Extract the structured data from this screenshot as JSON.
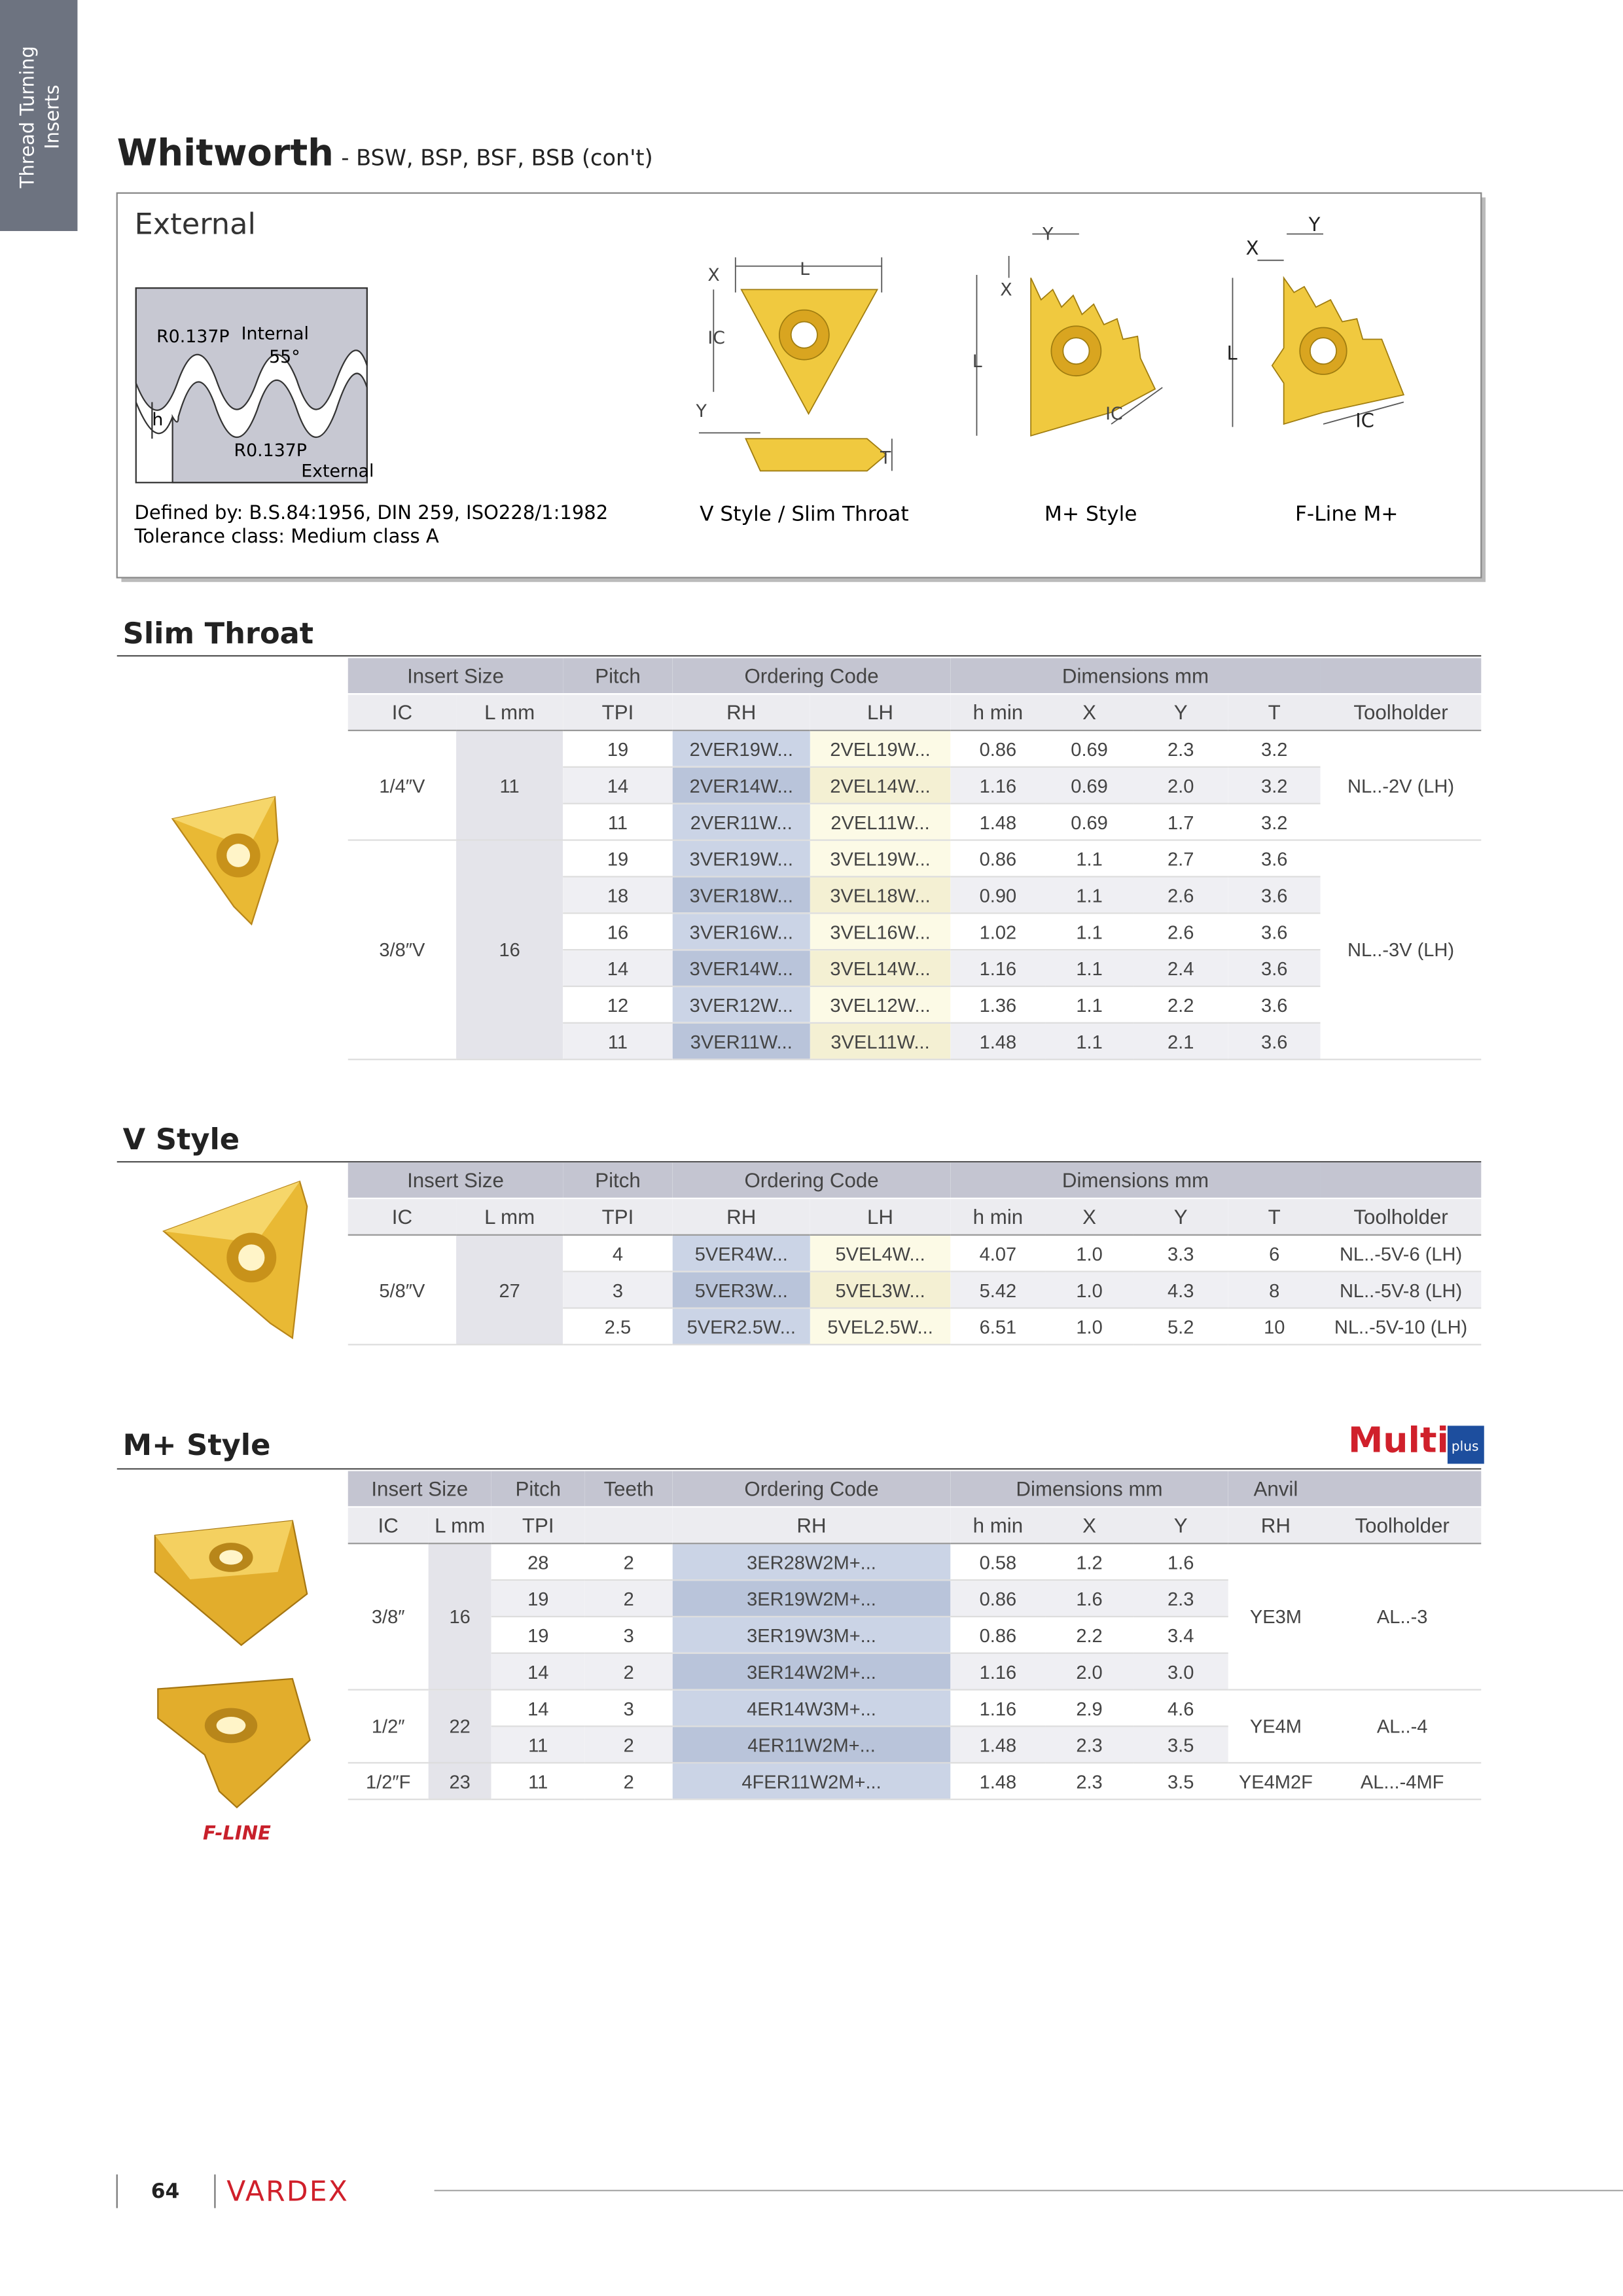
{
  "sidebar": {
    "text": [
      "Thread Turning",
      "Inserts"
    ]
  },
  "header": {
    "title": "Whitworth",
    "subtitle": "- BSW, BSP, BSF, BSB (con't)"
  },
  "external": {
    "title": "External",
    "profile": {
      "r_top": "R0.137P",
      "internal": "Internal",
      "angle": "55°",
      "h": "h",
      "r_bottom": "R0.137P",
      "external": "External"
    },
    "defined_by": "Defined by: B.S.84:1956, DIN 259, ISO228/1:1982",
    "tolerance": "Tolerance class: Medium class A",
    "diagrams": [
      {
        "caption": "V Style / Slim Throat",
        "labels": {
          "x": "X",
          "l": "L",
          "ic": "IC",
          "y": "Y",
          "t": "T"
        }
      },
      {
        "caption": "M+ Style",
        "labels": {
          "y": "Y",
          "x": "X",
          "l": "L",
          "ic": "IC"
        }
      },
      {
        "caption": "F-Line M+",
        "labels": {
          "x": "X",
          "y": "Y",
          "l": "L",
          "ic": "IC"
        }
      }
    ]
  },
  "slim_throat": {
    "title": "Slim Throat",
    "table": {
      "group_headers": [
        "Insert Size",
        "Pitch",
        "Ordering Code",
        "Dimensions mm",
        null
      ],
      "columns": [
        "IC",
        "L mm",
        "TPI",
        "RH",
        "LH",
        "h min",
        "X",
        "Y",
        "T",
        "Toolholder"
      ],
      "groups": [
        {
          "lead": [
            "1/4″V",
            "11"
          ],
          "rows": [
            [
              "19",
              "2VER19W...",
              "2VEL19W...",
              "0.86",
              "0.69",
              "2.3",
              "3.2"
            ],
            [
              "14",
              "2VER14W...",
              "2VEL14W...",
              "1.16",
              "0.69",
              "2.0",
              "3.2"
            ],
            [
              "11",
              "2VER11W...",
              "2VEL11W...",
              "1.48",
              "0.69",
              "1.7",
              "3.2"
            ]
          ],
          "tail": [
            "NL..-2V (LH)"
          ]
        },
        {
          "lead": [
            "3/8″V",
            "16"
          ],
          "rows": [
            [
              "19",
              "3VER19W...",
              "3VEL19W...",
              "0.86",
              "1.1",
              "2.7",
              "3.6"
            ],
            [
              "18",
              "3VER18W...",
              "3VEL18W...",
              "0.90",
              "1.1",
              "2.6",
              "3.6"
            ],
            [
              "16",
              "3VER16W...",
              "3VEL16W...",
              "1.02",
              "1.1",
              "2.6",
              "3.6"
            ],
            [
              "14",
              "3VER14W...",
              "3VEL14W...",
              "1.16",
              "1.1",
              "2.4",
              "3.6"
            ],
            [
              "12",
              "3VER12W...",
              "3VEL12W...",
              "1.36",
              "1.1",
              "2.2",
              "3.6"
            ],
            [
              "11",
              "3VER11W...",
              "3VEL11W...",
              "1.48",
              "1.1",
              "2.1",
              "3.6"
            ]
          ],
          "tail": [
            "NL..-3V (LH)"
          ]
        }
      ]
    }
  },
  "v_style": {
    "title": "V Style",
    "table": {
      "group_headers": [
        "Insert Size",
        "Pitch",
        "Ordering Code",
        "Dimensions mm",
        null
      ],
      "columns": [
        "IC",
        "L mm",
        "TPI",
        "RH",
        "LH",
        "h min",
        "X",
        "Y",
        "T",
        "Toolholder"
      ],
      "groups": [
        {
          "lead": [
            "5/8″V",
            "27"
          ],
          "rows": [
            [
              "4",
              "5VER4W...",
              "5VEL4W...",
              "4.07",
              "1.0",
              "3.3",
              "6",
              "NL..-5V-6 (LH)"
            ],
            [
              "3",
              "5VER3W...",
              "5VEL3W...",
              "5.42",
              "1.0",
              "4.3",
              "8",
              "NL..-5V-8 (LH)"
            ],
            [
              "2.5",
              "5VER2.5W...",
              "5VEL2.5W...",
              "6.51",
              "1.0",
              "5.2",
              "10",
              "NL..-5V-10 (LH)"
            ]
          ]
        }
      ]
    }
  },
  "m_plus": {
    "title": "M+ Style",
    "logo": {
      "main": "Multi",
      "badge": "plus"
    },
    "fline": "F-LINE",
    "table": {
      "group_headers": [
        "Insert Size",
        "Pitch",
        "Teeth",
        "Ordering Code",
        "Dimensions mm",
        "Anvil",
        null
      ],
      "columns": [
        "IC",
        "L mm",
        "TPI",
        null,
        "RH",
        "h min",
        "X",
        "Y",
        "RH",
        "Toolholder"
      ],
      "groups": [
        {
          "lead": [
            "3/8″",
            "16"
          ],
          "rows": [
            [
              "28",
              "2",
              "3ER28W2M+...",
              "0.58",
              "1.2",
              "1.6"
            ],
            [
              "19",
              "2",
              "3ER19W2M+...",
              "0.86",
              "1.6",
              "2.3"
            ],
            [
              "19",
              "3",
              "3ER19W3M+...",
              "0.86",
              "2.2",
              "3.4"
            ],
            [
              "14",
              "2",
              "3ER14W2M+...",
              "1.16",
              "2.0",
              "3.0"
            ]
          ],
          "tail": [
            "YE3M",
            "AL..-3"
          ]
        },
        {
          "lead": [
            "1/2″",
            "22"
          ],
          "rows": [
            [
              "14",
              "3",
              "4ER14W3M+...",
              "1.16",
              "2.9",
              "4.6"
            ],
            [
              "11",
              "2",
              "4ER11W2M+...",
              "1.48",
              "2.3",
              "3.5"
            ]
          ],
          "tail": [
            "YE4M",
            "AL..-4"
          ]
        },
        {
          "lead": [
            "1/2″F",
            "23"
          ],
          "rows": [
            [
              "11",
              "2",
              "4FER11W2M+...",
              "1.48",
              "2.3",
              "3.5"
            ]
          ],
          "tail": [
            "YE4M2F",
            "AL...-4MF"
          ]
        }
      ]
    }
  },
  "footer": {
    "page": "64",
    "brand": "VARDEX"
  }
}
